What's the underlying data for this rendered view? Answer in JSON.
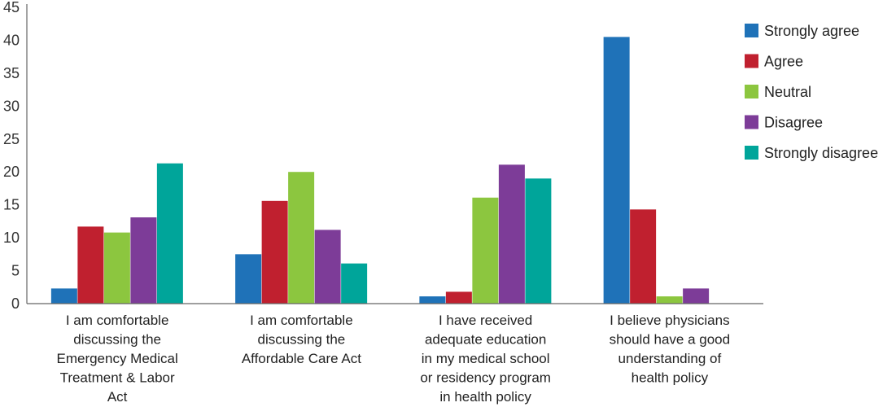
{
  "chart_data": {
    "type": "bar",
    "title": "",
    "xlabel": "",
    "ylabel": "",
    "ylim": [
      0,
      45
    ],
    "yticks": [
      0,
      5,
      10,
      15,
      20,
      25,
      30,
      35,
      40,
      45
    ],
    "grid": false,
    "legend_position": "top-right",
    "categories": [
      [
        "I am comfortable",
        "discussing the",
        "Emergency Medical",
        "Treatment & Labor",
        "Act"
      ],
      [
        "I am comfortable",
        "discussing the",
        "Affordable Care Act"
      ],
      [
        "I have received",
        "adequate education",
        "in my medical school",
        "or residency program",
        "in health policy"
      ],
      [
        "I believe physicians",
        "should have a good",
        "understanding of",
        "health policy"
      ]
    ],
    "series": [
      {
        "name": "Strongly agree",
        "color": "#1f72b8",
        "values": [
          2.3,
          7.5,
          1.1,
          40.5
        ]
      },
      {
        "name": "Agree",
        "color": "#c0202f",
        "values": [
          11.7,
          15.6,
          1.8,
          14.3
        ]
      },
      {
        "name": "Neutral",
        "color": "#8cc63f",
        "values": [
          10.8,
          20.0,
          16.1,
          1.1
        ]
      },
      {
        "name": "Disagree",
        "color": "#7d3c98",
        "values": [
          13.1,
          11.2,
          21.1,
          2.3
        ]
      },
      {
        "name": "Strongly disagree",
        "color": "#00a59a",
        "values": [
          21.3,
          6.1,
          19.0,
          0
        ]
      }
    ]
  }
}
